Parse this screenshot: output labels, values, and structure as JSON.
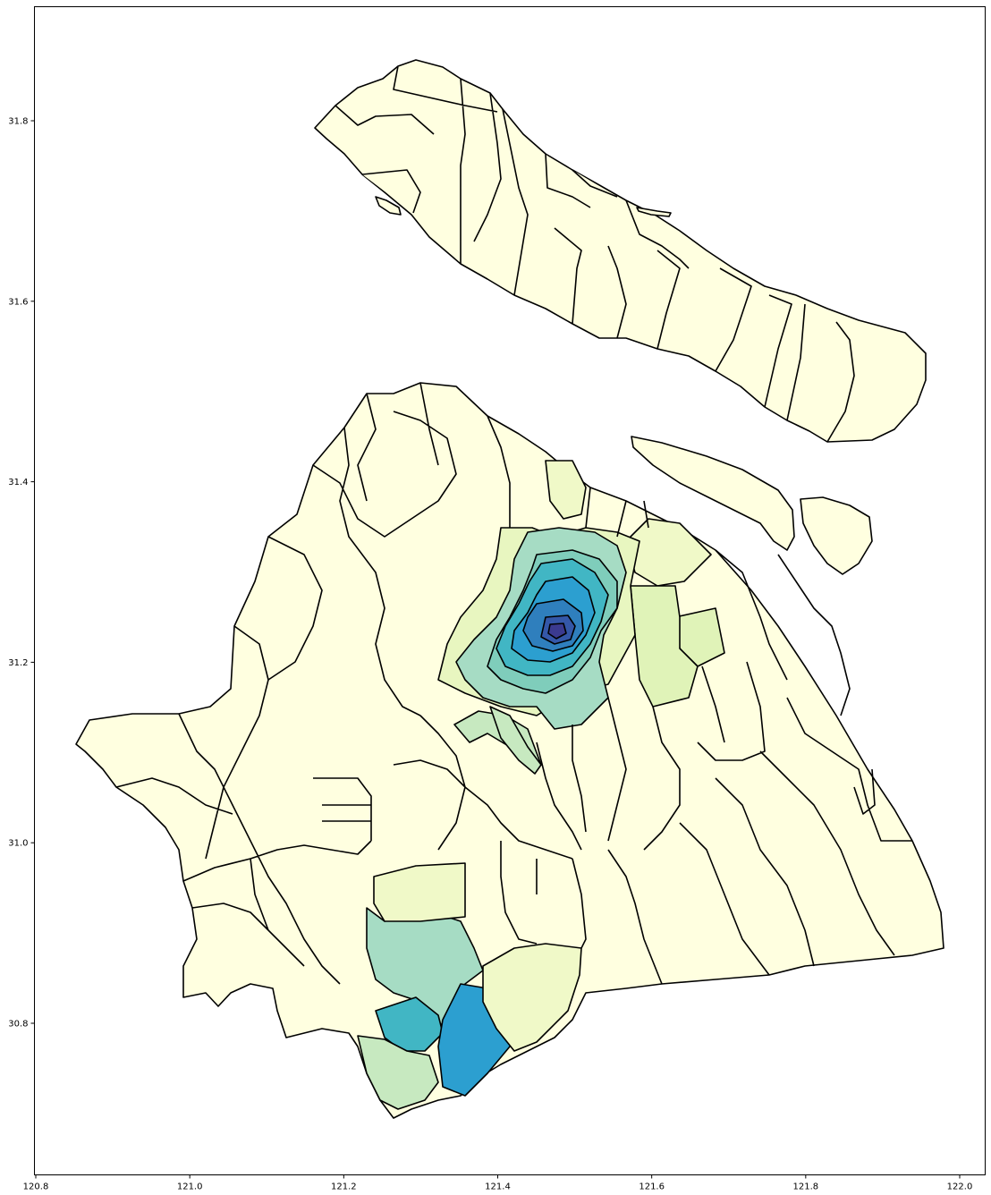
{
  "chart_data": {
    "type": "choropleth-map",
    "title": "",
    "xlabel": "",
    "ylabel": "",
    "xlim": [
      120.8,
      122.03
    ],
    "ylim": [
      30.66,
      31.92
    ],
    "x_ticks": [
      "120.8",
      "121.0",
      "121.2",
      "121.4",
      "121.6",
      "121.8",
      "122.0"
    ],
    "y_ticks": [
      "30.8",
      "31.0",
      "31.2",
      "31.4",
      "31.6",
      "31.8"
    ],
    "colormap": "YlGnBu",
    "colors": {
      "palest": "#ffffe0",
      "pale": "#f0f9c8",
      "light": "#d9f0b8",
      "light_green": "#c7e9c0",
      "teal_light": "#a6dcc4",
      "teal": "#7fcdbb",
      "cyan": "#41b6c4",
      "blue": "#2c9fd0",
      "mid_blue": "#2f7fbd",
      "dark_blue": "#3457a8",
      "darkest": "#3b3a8f",
      "outline": "#000000"
    }
  }
}
